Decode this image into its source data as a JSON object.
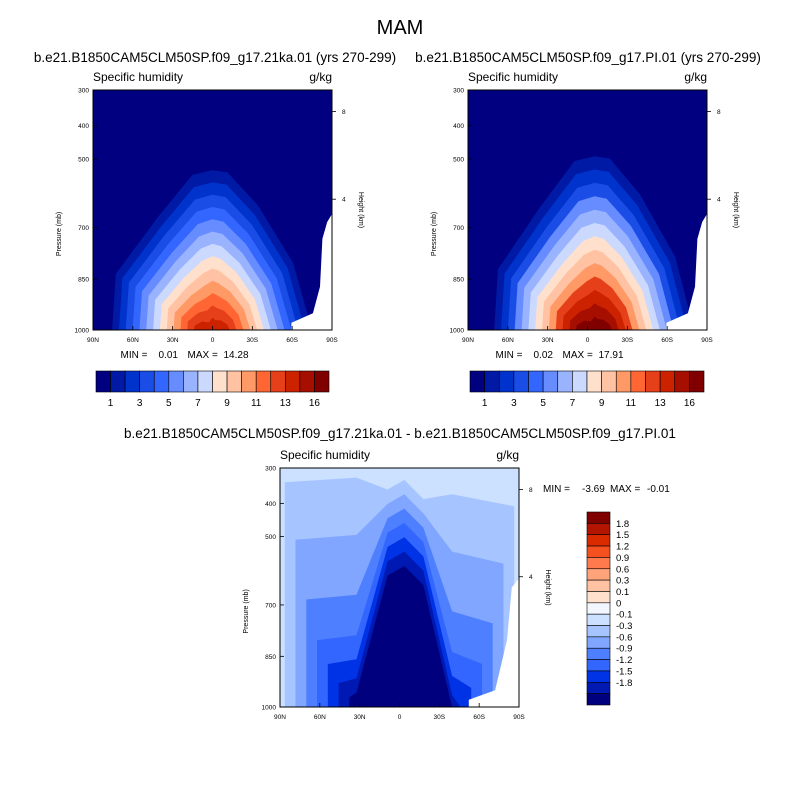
{
  "figure": {
    "season": "MAM"
  },
  "colors": {
    "abs_fill": [
      "#000080",
      "#001aa6",
      "#0033cc",
      "#1a4ce6",
      "#3366ff",
      "#668cff",
      "#99b3ff",
      "#ccd9ff",
      "#ffe0cc",
      "#ffc2a3",
      "#ff9966",
      "#ff6633",
      "#e6401a",
      "#cc2200",
      "#a60f00",
      "#800000"
    ],
    "diff_fill": [
      "#00007f",
      "#0019b2",
      "#0033e6",
      "#3366ff",
      "#4d7fff",
      "#80a6ff",
      "#a6c4ff",
      "#cce0ff",
      "#f2f7ff",
      "#ffe0cc",
      "#ffc2a3",
      "#ffa37a",
      "#ff7a4d",
      "#f5501f",
      "#d92a00",
      "#b31500",
      "#800000"
    ]
  },
  "chart_data": [
    {
      "type": "contour",
      "title": "b.e21.B1850CAM5CLM50SP.f09_g17.21ka.01 (yrs 270-299)",
      "left_title": "Specific humidity",
      "units": "g/kg",
      "ylabel": "Pressure (mb)",
      "ylabel_right": "Height (km)",
      "x_ticks": [
        "90N",
        "60N",
        "30N",
        "0",
        "30S",
        "60S",
        "90S"
      ],
      "y_ticks": [
        "300",
        "400",
        "500",
        "700",
        "850",
        "1000"
      ],
      "y_right_ticks": [
        "8",
        "4"
      ],
      "min_label": "MIN =",
      "min_value": "0.01",
      "max_label": "MAX =",
      "max_value": "14.28",
      "colorbar_labels": [
        "1",
        "3",
        "5",
        "7",
        "9",
        "11",
        "13",
        "16"
      ],
      "ylim": [
        1000,
        300
      ]
    },
    {
      "type": "contour",
      "title": "b.e21.B1850CAM5CLM50SP.f09_g17.PI.01 (yrs 270-299)",
      "left_title": "Specific humidity",
      "units": "g/kg",
      "ylabel": "Pressure (mb)",
      "ylabel_right": "Height (km)",
      "x_ticks": [
        "90N",
        "60N",
        "30N",
        "0",
        "30S",
        "60S",
        "90S"
      ],
      "y_ticks": [
        "300",
        "400",
        "500",
        "700",
        "850",
        "1000"
      ],
      "y_right_ticks": [
        "8",
        "4"
      ],
      "min_label": "MIN =",
      "min_value": "0.02",
      "max_label": "MAX =",
      "max_value": "17.91",
      "colorbar_labels": [
        "1",
        "3",
        "5",
        "7",
        "9",
        "11",
        "13",
        "16"
      ],
      "ylim": [
        1000,
        300
      ]
    },
    {
      "type": "contour",
      "title": "b.e21.B1850CAM5CLM50SP.f09_g17.21ka.01 - b.e21.B1850CAM5CLM50SP.f09_g17.PI.01",
      "left_title": "Specific humidity",
      "units": "g/kg",
      "ylabel": "Pressure (mb)",
      "ylabel_right": "Height (km)",
      "x_ticks": [
        "90N",
        "60N",
        "30N",
        "0",
        "30S",
        "60S",
        "90S"
      ],
      "y_ticks": [
        "300",
        "400",
        "500",
        "700",
        "850",
        "1000"
      ],
      "y_right_ticks": [
        "8",
        "4"
      ],
      "min_label": "MIN =",
      "min_value": "-3.69",
      "max_label": "MAX =",
      "max_value": "-0.01",
      "colorbar_labels": [
        "1.8",
        "1.5",
        "1.2",
        "0.9",
        "0.6",
        "0.3",
        "0.1",
        "0",
        "-0.1",
        "-0.3",
        "-0.6",
        "-0.9",
        "-1.2",
        "-1.5",
        "-1.8"
      ],
      "ylim": [
        1000,
        300
      ]
    }
  ]
}
